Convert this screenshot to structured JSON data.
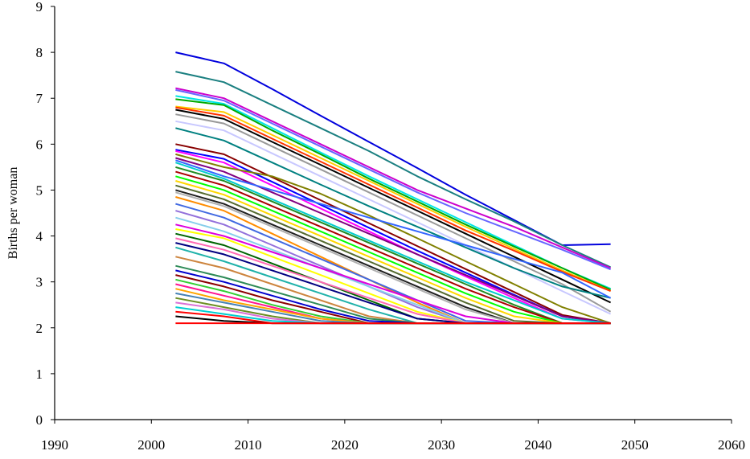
{
  "chart_data": {
    "type": "line",
    "title": "",
    "xlabel": "",
    "ylabel": "Births per woman",
    "xlim": [
      1990,
      2060
    ],
    "ylim": [
      0,
      9
    ],
    "xticks": [
      1990,
      2000,
      2010,
      2020,
      2030,
      2040,
      2050,
      2060
    ],
    "yticks": [
      0,
      1,
      2,
      3,
      4,
      5,
      6,
      7,
      8,
      9
    ],
    "grid": false,
    "legend": "none",
    "x": [
      2002.5,
      2007.5,
      2012.5,
      2017.5,
      2022.5,
      2027.5,
      2032.5,
      2037.5,
      2042.5,
      2047.5
    ],
    "series": [
      {
        "color": "#0000dd",
        "values": [
          8.0,
          7.76,
          7.2,
          6.62,
          6.05,
          5.48,
          4.9,
          4.35,
          3.8,
          3.82
        ]
      },
      {
        "color": "#1a7f80",
        "values": [
          7.58,
          7.35,
          6.85,
          6.35,
          5.85,
          5.3,
          4.8,
          4.32,
          3.8,
          3.32
        ]
      },
      {
        "color": "#cc00cc",
        "values": [
          7.22,
          7.0,
          6.5,
          6.0,
          5.5,
          5.0,
          4.6,
          4.2,
          3.75,
          3.3
        ]
      },
      {
        "color": "#6666ff",
        "values": [
          7.18,
          6.95,
          6.45,
          5.95,
          5.45,
          4.95,
          4.5,
          4.1,
          3.7,
          3.27
        ]
      },
      {
        "color": "#00e5e5",
        "values": [
          7.05,
          6.88,
          6.35,
          5.82,
          5.3,
          4.8,
          4.3,
          3.8,
          3.3,
          2.85
        ]
      },
      {
        "color": "#00aa00",
        "values": [
          6.98,
          6.85,
          6.3,
          5.78,
          5.25,
          4.75,
          4.25,
          3.77,
          3.3,
          2.83
        ]
      },
      {
        "color": "#ffcc00",
        "values": [
          6.82,
          6.7,
          6.2,
          5.7,
          5.2,
          4.7,
          4.2,
          3.72,
          3.25,
          2.8
        ]
      },
      {
        "color": "#ff3300",
        "values": [
          6.8,
          6.62,
          6.12,
          5.62,
          5.12,
          4.62,
          4.12,
          3.68,
          3.22,
          2.8
        ]
      },
      {
        "color": "#000000",
        "values": [
          6.75,
          6.55,
          6.05,
          5.55,
          5.05,
          4.55,
          4.05,
          3.55,
          3.05,
          2.55
        ]
      },
      {
        "color": "#999999",
        "values": [
          6.65,
          6.45,
          5.95,
          5.45,
          4.95,
          4.45,
          3.95,
          3.45,
          2.95,
          2.35
        ]
      },
      {
        "color": "#c8c8ff",
        "values": [
          6.5,
          6.3,
          5.8,
          5.3,
          4.8,
          4.3,
          3.8,
          3.3,
          2.8,
          2.3
        ]
      },
      {
        "color": "#008080",
        "values": [
          6.35,
          6.08,
          5.6,
          5.12,
          4.65,
          4.2,
          3.75,
          3.3,
          2.9,
          2.65
        ]
      },
      {
        "color": "#880000",
        "values": [
          6.0,
          5.78,
          5.28,
          4.78,
          4.28,
          3.78,
          3.28,
          2.78,
          2.28,
          2.1
        ]
      },
      {
        "color": "#0000ff",
        "values": [
          5.88,
          5.68,
          5.18,
          4.68,
          4.18,
          3.68,
          3.2,
          2.72,
          2.25,
          2.1
        ]
      },
      {
        "color": "#ff00ff",
        "values": [
          5.85,
          5.6,
          5.1,
          4.6,
          4.1,
          3.6,
          3.12,
          2.65,
          2.2,
          2.1
        ]
      },
      {
        "color": "#808000",
        "values": [
          5.78,
          5.5,
          5.3,
          4.92,
          4.45,
          3.95,
          3.45,
          2.95,
          2.45,
          2.1
        ]
      },
      {
        "color": "#800080",
        "values": [
          5.7,
          5.4,
          4.95,
          4.5,
          4.05,
          3.6,
          3.15,
          2.7,
          2.25,
          2.1
        ]
      },
      {
        "color": "#3366ff",
        "values": [
          5.65,
          5.3,
          5.0,
          4.7,
          4.4,
          4.1,
          3.8,
          3.5,
          3.2,
          2.65
        ]
      },
      {
        "color": "#00cccc",
        "values": [
          5.6,
          5.25,
          4.8,
          4.35,
          3.9,
          3.45,
          3.0,
          2.6,
          2.2,
          2.1
        ]
      },
      {
        "color": "#228b22",
        "values": [
          5.5,
          5.2,
          4.75,
          4.3,
          3.85,
          3.4,
          2.95,
          2.5,
          2.1,
          2.1
        ]
      },
      {
        "color": "#aa0000",
        "values": [
          5.4,
          5.1,
          4.65,
          4.2,
          3.75,
          3.3,
          2.85,
          2.45,
          2.1,
          2.1
        ]
      },
      {
        "color": "#00ff00",
        "values": [
          5.3,
          5.0,
          4.55,
          4.1,
          3.65,
          3.2,
          2.75,
          2.35,
          2.1,
          2.1
        ]
      },
      {
        "color": "#ffd700",
        "values": [
          5.2,
          4.9,
          4.45,
          4.0,
          3.55,
          3.1,
          2.65,
          2.25,
          2.1,
          2.1
        ]
      },
      {
        "color": "#556b2f",
        "values": [
          5.1,
          4.8,
          4.35,
          3.9,
          3.45,
          3.0,
          2.55,
          2.15,
          2.1,
          2.1
        ]
      },
      {
        "color": "#1f1f1f",
        "values": [
          5.0,
          4.7,
          4.25,
          3.8,
          3.35,
          2.9,
          2.45,
          2.1,
          2.1,
          2.1
        ]
      },
      {
        "color": "#b0b0b0",
        "values": [
          4.95,
          4.65,
          4.2,
          3.75,
          3.3,
          2.85,
          2.4,
          2.1,
          2.1,
          2.1
        ]
      },
      {
        "color": "#ff8c00",
        "values": [
          4.85,
          4.55,
          4.05,
          3.55,
          3.05,
          2.55,
          2.1,
          2.1,
          2.1,
          2.1
        ]
      },
      {
        "color": "#4169e1",
        "values": [
          4.7,
          4.4,
          3.95,
          3.5,
          3.05,
          2.6,
          2.15,
          2.1,
          2.1,
          2.1
        ]
      },
      {
        "color": "#9370db",
        "values": [
          4.55,
          4.25,
          3.8,
          3.35,
          2.9,
          2.45,
          2.1,
          2.1,
          2.1,
          2.1
        ]
      },
      {
        "color": "#87ceeb",
        "values": [
          4.4,
          4.1,
          3.7,
          3.3,
          2.9,
          2.5,
          2.1,
          2.1,
          2.1,
          2.1
        ]
      },
      {
        "color": "#dd00dd",
        "values": [
          4.25,
          4.0,
          3.65,
          3.3,
          2.95,
          2.6,
          2.25,
          2.1,
          2.1,
          2.1
        ]
      },
      {
        "color": "#ffff00",
        "values": [
          4.15,
          3.95,
          3.55,
          3.15,
          2.75,
          2.35,
          2.1,
          2.1,
          2.1,
          2.1
        ]
      },
      {
        "color": "#006400",
        "values": [
          4.05,
          3.8,
          3.4,
          3.0,
          2.6,
          2.2,
          2.1,
          2.1,
          2.1,
          2.1
        ]
      },
      {
        "color": "#ff69b4",
        "values": [
          3.95,
          3.7,
          3.35,
          3.0,
          2.65,
          2.3,
          2.1,
          2.1,
          2.1,
          2.1
        ]
      },
      {
        "color": "#000080",
        "values": [
          3.85,
          3.6,
          3.25,
          2.9,
          2.55,
          2.2,
          2.1,
          2.1,
          2.1,
          2.1
        ]
      },
      {
        "color": "#20b2aa",
        "values": [
          3.75,
          3.45,
          3.1,
          2.75,
          2.4,
          2.1,
          2.1,
          2.1,
          2.1,
          2.1
        ]
      },
      {
        "color": "#cd853f",
        "values": [
          3.55,
          3.3,
          2.95,
          2.6,
          2.25,
          2.1,
          2.1,
          2.1,
          2.1,
          2.1
        ]
      },
      {
        "color": "#2e8b57",
        "values": [
          3.35,
          3.1,
          2.8,
          2.5,
          2.2,
          2.1,
          2.1,
          2.1,
          2.1,
          2.1
        ]
      },
      {
        "color": "#0000cd",
        "values": [
          3.25,
          3.0,
          2.7,
          2.4,
          2.15,
          2.1,
          2.1,
          2.1,
          2.1,
          2.1
        ]
      },
      {
        "color": "#8b0000",
        "values": [
          3.15,
          2.9,
          2.6,
          2.35,
          2.1,
          2.1,
          2.1,
          2.1,
          2.1,
          2.1
        ]
      },
      {
        "color": "#32cd32",
        "values": [
          3.05,
          2.8,
          2.5,
          2.25,
          2.1,
          2.1,
          2.1,
          2.1,
          2.1,
          2.1
        ]
      },
      {
        "color": "#ff1493",
        "values": [
          2.95,
          2.7,
          2.45,
          2.2,
          2.1,
          2.1,
          2.1,
          2.1,
          2.1,
          2.1
        ]
      },
      {
        "color": "#ffa500",
        "values": [
          2.85,
          2.6,
          2.4,
          2.2,
          2.1,
          2.1,
          2.1,
          2.1,
          2.1,
          2.1
        ]
      },
      {
        "color": "#4682b4",
        "values": [
          2.75,
          2.55,
          2.35,
          2.15,
          2.1,
          2.1,
          2.1,
          2.1,
          2.1,
          2.1
        ]
      },
      {
        "color": "#6b8e23",
        "values": [
          2.65,
          2.45,
          2.25,
          2.1,
          2.1,
          2.1,
          2.1,
          2.1,
          2.1,
          2.1
        ]
      },
      {
        "color": "#da70d6",
        "values": [
          2.55,
          2.4,
          2.2,
          2.1,
          2.1,
          2.1,
          2.1,
          2.1,
          2.1,
          2.1
        ]
      },
      {
        "color": "#00ced1",
        "values": [
          2.45,
          2.3,
          2.15,
          2.1,
          2.1,
          2.1,
          2.1,
          2.1,
          2.1,
          2.1
        ]
      },
      {
        "color": "#ff0000",
        "values": [
          2.35,
          2.25,
          2.1,
          2.1,
          2.1,
          2.1,
          2.1,
          2.1,
          2.1,
          2.1
        ]
      },
      {
        "color": "#000000",
        "values": [
          2.25,
          2.15,
          2.1,
          2.1,
          2.1,
          2.1,
          2.1,
          2.1,
          2.1,
          2.1
        ]
      },
      {
        "color": "#ff0000",
        "values": [
          2.1,
          2.1,
          2.1,
          2.1,
          2.1,
          2.1,
          2.1,
          2.1,
          2.1,
          2.1
        ]
      }
    ]
  }
}
